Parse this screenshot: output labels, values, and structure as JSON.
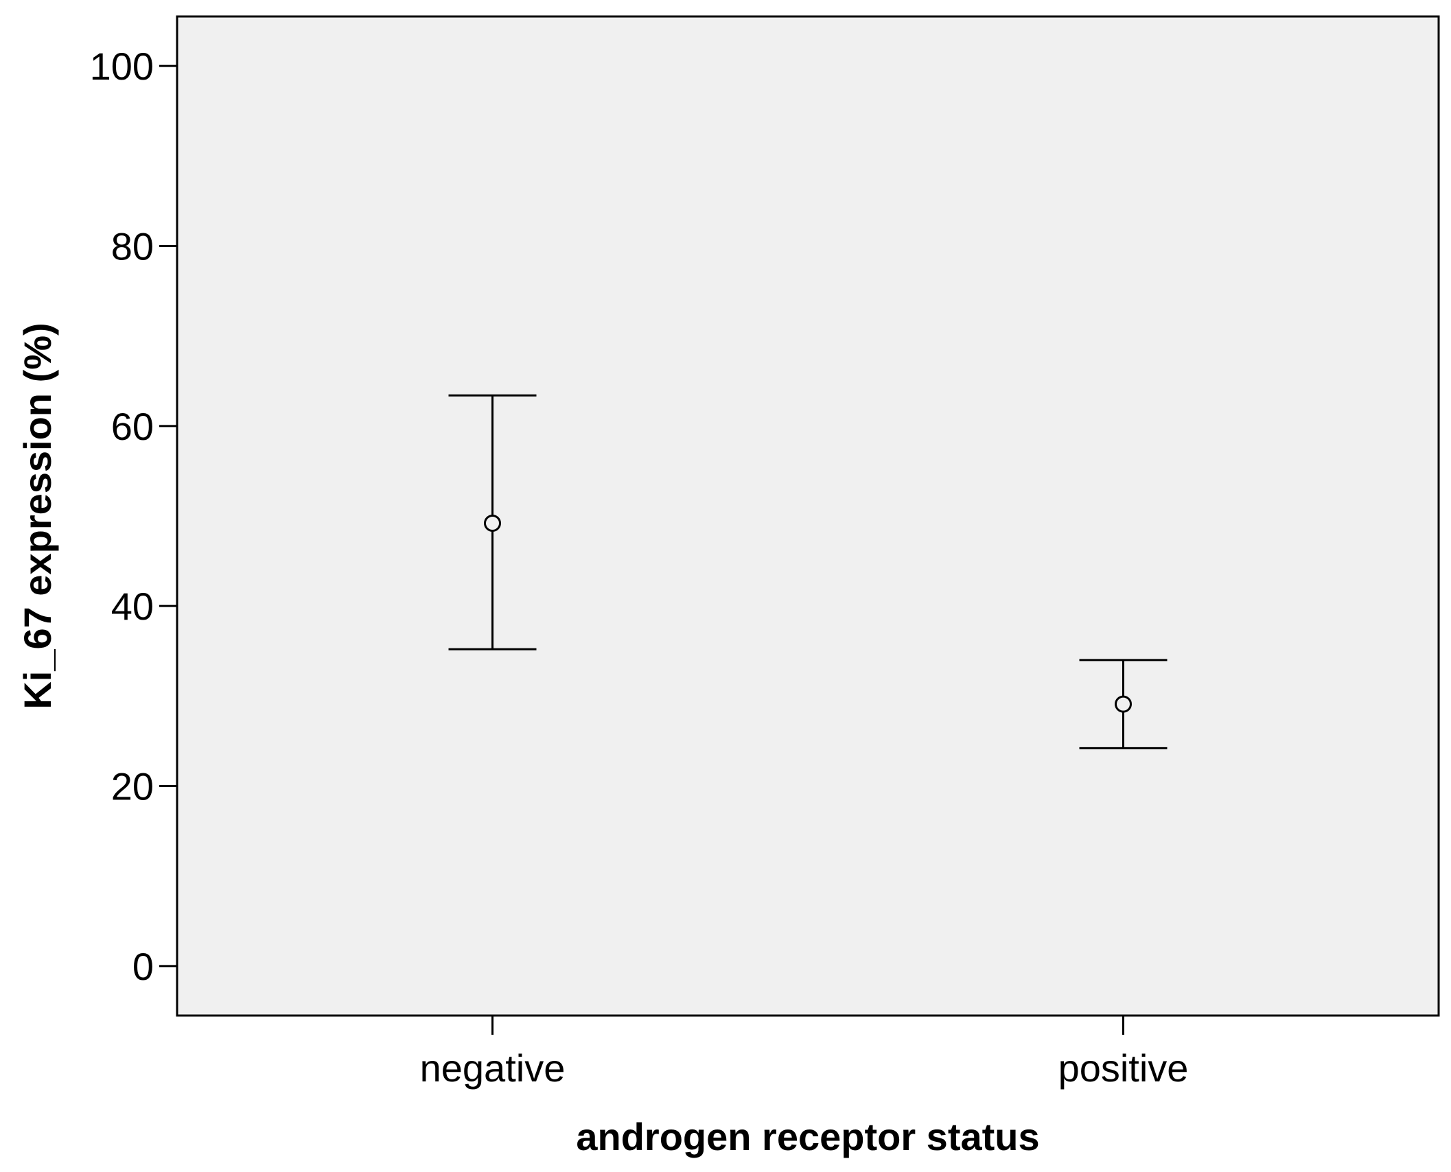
{
  "chart_data": {
    "type": "scatter",
    "subtype": "error-bar",
    "title": "",
    "xlabel": "androgen receptor status",
    "ylabel": "Ki_67 expression (%)",
    "categories": [
      "negative",
      "positive"
    ],
    "series": [
      {
        "values": [
          49.2,
          29.1
        ],
        "lower": [
          35.2,
          24.2
        ],
        "upper": [
          63.4,
          34.0
        ]
      }
    ],
    "ylim": [
      -5.5,
      105.5
    ],
    "yticks": [
      0,
      20,
      40,
      60,
      80,
      100
    ],
    "grid": false,
    "legend": "none",
    "colors": {
      "plot_background": "#f0f0f0",
      "marks": "#000000",
      "axis": "#000000"
    }
  }
}
